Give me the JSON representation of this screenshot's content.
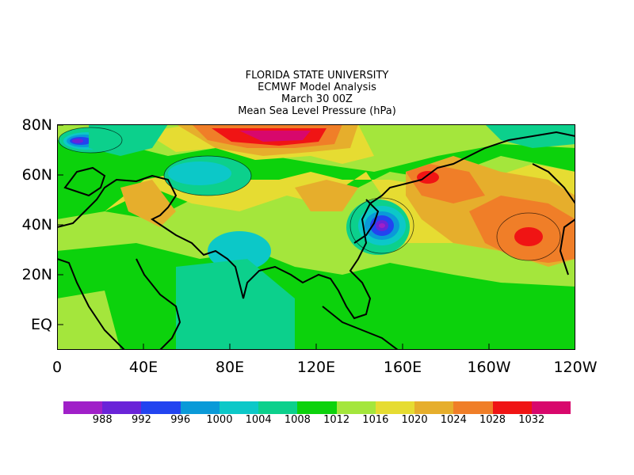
{
  "title": {
    "line1": "FLORIDA STATE UNIVERSITY",
    "line2": "ECMWF Model Analysis",
    "line3": "March 30 00Z",
    "line4": "Mean Sea Level Pressure (hPa)"
  },
  "axes": {
    "lat_labels": [
      "80N",
      "60N",
      "40N",
      "20N",
      "EQ"
    ],
    "lon_labels": [
      "0",
      "40E",
      "80E",
      "120E",
      "160E",
      "160W",
      "120W"
    ]
  },
  "colorbar": {
    "colors": [
      "#a020c8",
      "#6a24d8",
      "#2244f0",
      "#0a9ad8",
      "#0cc8c8",
      "#0cd08c",
      "#0cd20c",
      "#a4e63c",
      "#e6dc32",
      "#e6ae2c",
      "#f07e28",
      "#f01414",
      "#d8086c"
    ],
    "labels": [
      "988",
      "992",
      "996",
      "1000",
      "1004",
      "1008",
      "1012",
      "1016",
      "1020",
      "1024",
      "1028",
      "1032"
    ]
  },
  "map": {
    "background_color": "#0cd20c",
    "coastline_color": "#000000"
  }
}
